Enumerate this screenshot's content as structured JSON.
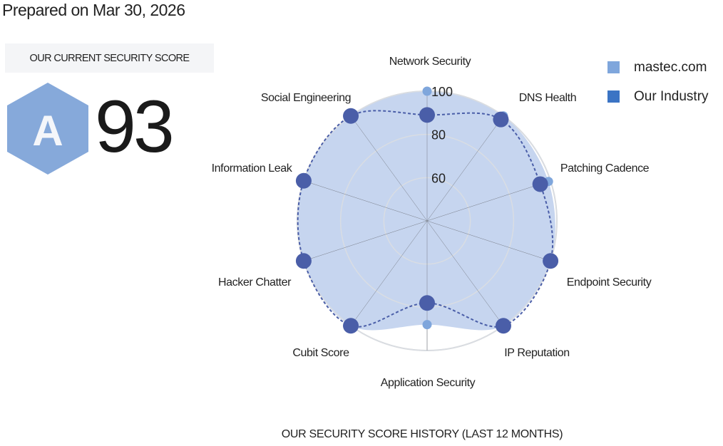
{
  "header": {
    "prepared": "Prepared on Mar 30, 2026"
  },
  "score_panel": {
    "title": "OUR CURRENT SECURITY SCORE",
    "grade": "A",
    "score": "93",
    "grade_color": "#86a9da"
  },
  "history_title": "OUR SECURITY SCORE HISTORY (LAST 12 MONTHS)",
  "chart_data": {
    "type": "radar",
    "categories": [
      "Network Security",
      "DNS Health",
      "Patching Cadence",
      "Endpoint Security",
      "IP Reputation",
      "Application Security",
      "Cubit Score",
      "Hacker Chatter",
      "Information Leak",
      "Social Engineering"
    ],
    "rlim": [
      40,
      100
    ],
    "ticks": [
      "60",
      "80",
      "100"
    ],
    "tick_values": [
      60,
      80,
      100
    ],
    "grid": true,
    "legend_position": "top-right",
    "series": [
      {
        "name": "mastec.com",
        "color": "#7fa6dc",
        "fill": "#c3d3ee",
        "values": [
          100,
          100,
          99,
          100,
          100,
          88,
          100,
          100,
          100,
          100
        ]
      },
      {
        "name": "Our Industry",
        "color": "#4a5ea8",
        "legend_color": "#3b74c4",
        "values": [
          89,
          98,
          95,
          100,
          100,
          78,
          100,
          100,
          100,
          100
        ]
      }
    ]
  }
}
